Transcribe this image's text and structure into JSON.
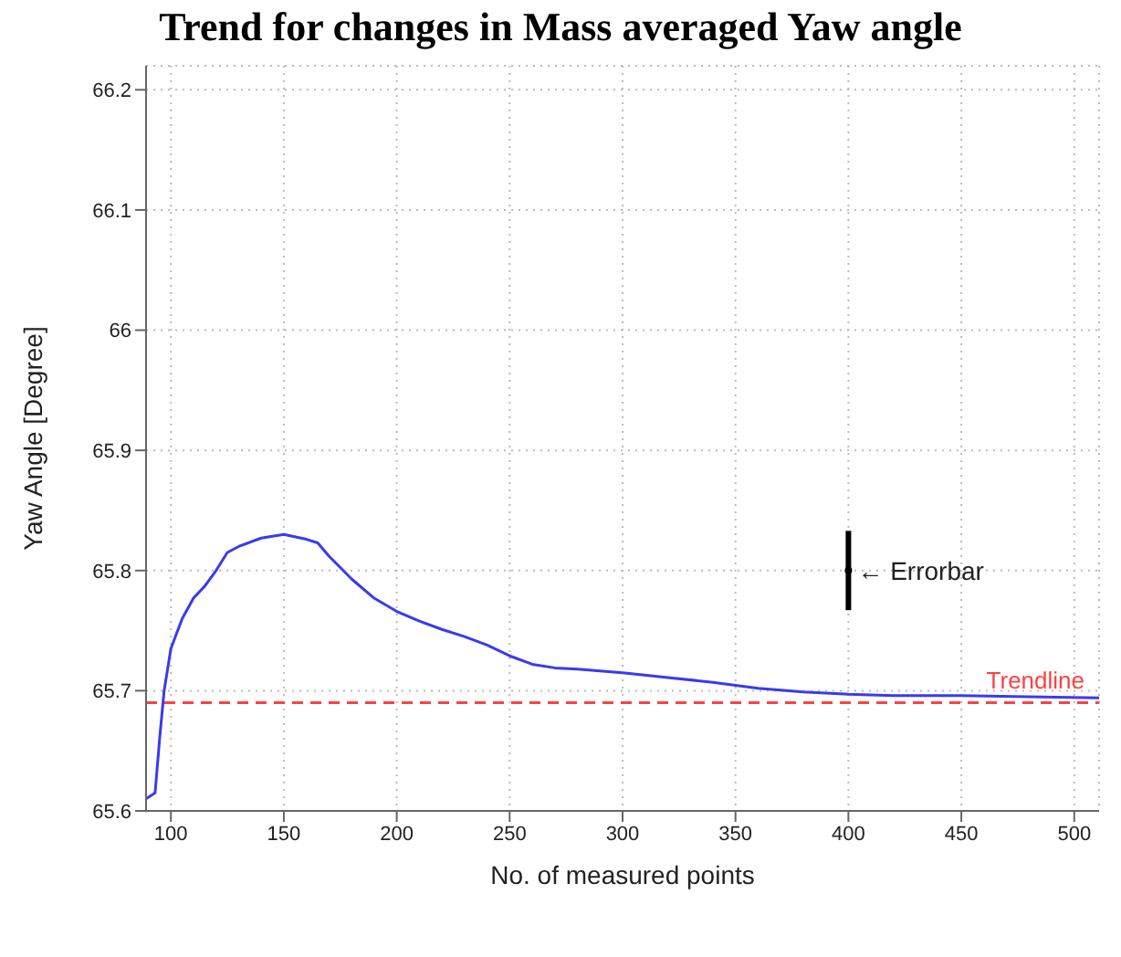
{
  "chart_data": {
    "type": "line",
    "title": "Trend for changes in Mass averaged Yaw angle",
    "xlabel": "No. of measured points",
    "ylabel": "Yaw Angle [Degree]",
    "xlim": [
      89,
      511
    ],
    "xticks": [
      100,
      150,
      200,
      250,
      300,
      350,
      400,
      450,
      500
    ],
    "ylim": [
      65.6,
      66.22
    ],
    "yticks": [
      65.6,
      65.7,
      65.8,
      65.9,
      66,
      66.1,
      66.2
    ],
    "grid": true,
    "line_style": "solid",
    "marker": "none",
    "series": [
      {
        "color": "#3a3af0",
        "x": [
          89,
          93,
          95,
          97,
          100,
          105,
          110,
          115,
          120,
          125,
          130,
          140,
          150,
          160,
          165,
          170,
          180,
          190,
          200,
          210,
          220,
          230,
          240,
          250,
          260,
          270,
          280,
          300,
          320,
          340,
          360,
          380,
          400,
          420,
          450,
          480,
          511
        ],
        "values": [
          65.61,
          65.615,
          65.66,
          65.7,
          65.735,
          65.76,
          65.777,
          65.787,
          65.8,
          65.815,
          65.82,
          65.827,
          65.83,
          65.826,
          65.823,
          65.812,
          65.793,
          65.777,
          65.766,
          65.758,
          65.751,
          65.745,
          65.738,
          65.729,
          65.722,
          65.719,
          65.718,
          65.715,
          65.711,
          65.707,
          65.702,
          65.699,
          65.697,
          65.696,
          65.696,
          65.695,
          65.694
        ]
      },
      {
        "type": "scatter",
        "color": "#000000",
        "marker": "circle",
        "x": [
          400
        ],
        "values": [
          65.8
        ],
        "errors": [
          0.033
        ]
      }
    ],
    "ref_lines": [
      {
        "axis": "y",
        "value": 65.69,
        "label": "Trendline",
        "color": "#ff4040",
        "line_style": "dashed"
      }
    ],
    "annotations": [
      {
        "text": "← Errorbar",
        "x": 400,
        "y": 65.8
      }
    ]
  }
}
